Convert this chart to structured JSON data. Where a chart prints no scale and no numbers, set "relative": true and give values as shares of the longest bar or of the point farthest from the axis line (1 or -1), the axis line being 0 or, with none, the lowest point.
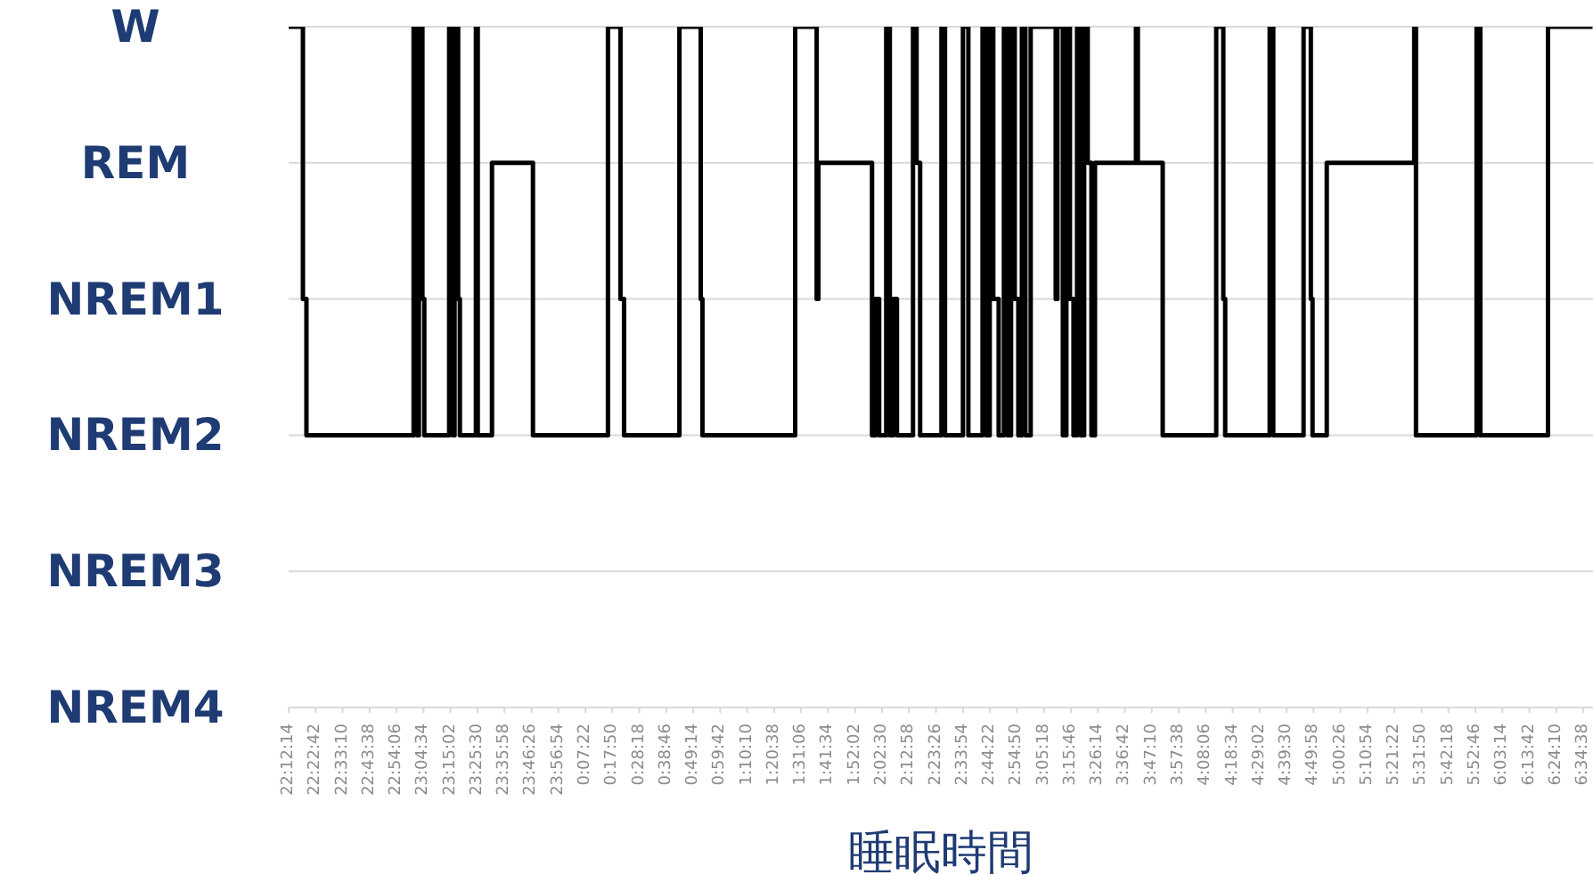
{
  "chart_data": {
    "type": "step",
    "xlabel": "睡眠時間",
    "x": [
      "2000-01-01T22:12:14",
      "2000-01-01T22:17:46",
      "2000-01-01T22:19:08",
      "2000-01-01T23:00:43",
      "2000-01-01T23:02:06",
      "2000-01-01T23:02:46",
      "2000-01-01T23:04:08",
      "2000-01-01T23:04:52",
      "2000-01-01T23:14:31",
      "2000-01-01T23:15:54",
      "2000-01-01T23:16:37",
      "2000-01-01T23:18:00",
      "2000-01-01T23:18:40",
      "2000-01-01T23:24:54",
      "2000-01-01T23:25:37",
      "2000-01-01T23:31:08",
      "2000-01-01T23:47:02",
      "2000-01-02T00:16:08",
      "2000-01-02T00:21:00",
      "2000-01-02T00:22:23",
      "2000-01-02T00:43:52",
      "2000-01-02T00:52:08",
      "2000-01-02T00:52:48",
      "2000-01-02T01:28:48",
      "2000-01-02T01:37:08",
      "2000-01-02T01:37:48",
      "2000-01-02T01:58:37",
      "2000-01-02T02:00:00",
      "2000-01-02T02:01:23",
      "2000-01-02T02:04:08",
      "2000-01-02T02:05:31",
      "2000-01-02T02:06:54",
      "2000-01-02T02:08:17",
      "2000-01-02T02:14:31",
      "2000-01-02T02:15:54",
      "2000-01-02T02:17:17",
      "2000-01-02T02:25:34",
      "2000-01-02T02:26:56",
      "2000-01-02T02:33:54",
      "2000-01-02T02:36:00",
      "2000-01-02T02:41:31",
      "2000-01-02T02:42:54",
      "2000-01-02T02:44:17",
      "2000-01-02T02:45:40",
      "2000-01-02T02:47:46",
      "2000-01-02T02:49:48",
      "2000-01-02T02:51:11",
      "2000-01-02T02:52:34",
      "2000-01-02T02:54:00",
      "2000-01-02T02:55:23",
      "2000-01-02T02:56:46",
      "2000-01-02T02:58:08",
      "2000-01-02T03:00:11",
      "2000-01-02T03:09:54",
      "2000-01-02T03:10:34",
      "2000-01-02T03:12:40",
      "2000-01-02T03:14:02",
      "2000-01-02T03:15:25",
      "2000-01-02T03:16:48",
      "2000-01-02T03:18:11",
      "2000-01-02T03:19:34",
      "2000-01-02T03:20:56",
      "2000-01-02T03:22:19",
      "2000-01-02T03:23:46",
      "2000-01-02T03:25:08",
      "2000-01-02T03:41:02",
      "2000-01-02T03:41:46",
      "2000-01-02T03:51:25",
      "2000-01-02T04:12:11",
      "2000-01-02T04:14:56",
      "2000-01-02T04:15:40",
      "2000-01-02T04:32:56",
      "2000-01-02T04:34:19",
      "2000-01-02T04:46:05",
      "2000-01-02T04:48:54",
      "2000-01-02T04:49:34",
      "2000-01-02T04:55:05",
      "2000-01-02T05:29:02",
      "2000-01-02T05:29:42",
      "2000-01-02T05:53:13",
      "2000-01-02T05:54:40",
      "2000-01-02T06:20:56",
      "2000-01-02T06:38:13"
    ],
    "y_categories": [
      "W",
      "REM",
      "NREM1",
      "NREM2",
      "NREM3",
      "NREM4"
    ],
    "relative": true,
    "series": [
      {
        "color": "#000000",
        "values": [
          1,
          0.6,
          0.4,
          1,
          0.4,
          1,
          0.6,
          0.4,
          1,
          0.4,
          1,
          0.6,
          0.4,
          1,
          0.4,
          0.8,
          0.4,
          1,
          0.6,
          0.4,
          1,
          0.6,
          0.4,
          1,
          0.6,
          0.8,
          0.4,
          0.6,
          0.4,
          1,
          0.4,
          0.6,
          0.4,
          1,
          0.8,
          0.4,
          1,
          0.4,
          1,
          0.4,
          1,
          0.4,
          1,
          0.6,
          0.4,
          1,
          0.4,
          1,
          0.6,
          0.4,
          1,
          0.4,
          1,
          0.6,
          1,
          0.4,
          1,
          0.6,
          0.4,
          1,
          0.4,
          1,
          0.8,
          0.4,
          0.8,
          1,
          0.8,
          0.4,
          1,
          0.6,
          0.4,
          1,
          0.4,
          1,
          0.6,
          0.4,
          0.8,
          1,
          0.4,
          1,
          0.4,
          1,
          1
        ]
      }
    ],
    "xlim": [
      "2000-01-01T22:12:14",
      "2000-01-02T06:38:24"
    ],
    "xticks": [
      {
        "value": "2000-01-01T22:12:14",
        "label": "22:12:14"
      },
      {
        "value": "2000-01-01T22:22:42",
        "label": "22:22:42"
      },
      {
        "value": "2000-01-01T22:33:10",
        "label": "22:33:10"
      },
      {
        "value": "2000-01-01T22:43:38",
        "label": "22:43:38"
      },
      {
        "value": "2000-01-01T22:54:06",
        "label": "22:54:06"
      },
      {
        "value": "2000-01-01T23:04:34",
        "label": "23:04:34"
      },
      {
        "value": "2000-01-01T23:15:02",
        "label": "23:15:02"
      },
      {
        "value": "2000-01-01T23:25:30",
        "label": "23:25:30"
      },
      {
        "value": "2000-01-01T23:35:58",
        "label": "23:35:58"
      },
      {
        "value": "2000-01-01T23:46:26",
        "label": "23:46:26"
      },
      {
        "value": "2000-01-01T23:56:54",
        "label": "23:56:54"
      },
      {
        "value": "2000-01-02T00:07:22",
        "label": "0:07:22"
      },
      {
        "value": "2000-01-02T00:17:50",
        "label": "0:17:50"
      },
      {
        "value": "2000-01-02T00:28:18",
        "label": "0:28:18"
      },
      {
        "value": "2000-01-02T00:38:46",
        "label": "0:38:46"
      },
      {
        "value": "2000-01-02T00:49:14",
        "label": "0:49:14"
      },
      {
        "value": "2000-01-02T00:59:42",
        "label": "0:59:42"
      },
      {
        "value": "2000-01-02T01:10:10",
        "label": "1:10:10"
      },
      {
        "value": "2000-01-02T01:20:38",
        "label": "1:20:38"
      },
      {
        "value": "2000-01-02T01:31:06",
        "label": "1:31:06"
      },
      {
        "value": "2000-01-02T01:41:34",
        "label": "1:41:34"
      },
      {
        "value": "2000-01-02T01:52:02",
        "label": "1:52:02"
      },
      {
        "value": "2000-01-02T02:02:30",
        "label": "2:02:30"
      },
      {
        "value": "2000-01-02T02:12:58",
        "label": "2:12:58"
      },
      {
        "value": "2000-01-02T02:23:26",
        "label": "2:23:26"
      },
      {
        "value": "2000-01-02T02:33:54",
        "label": "2:33:54"
      },
      {
        "value": "2000-01-02T02:44:22",
        "label": "2:44:22"
      },
      {
        "value": "2000-01-02T02:54:50",
        "label": "2:54:50"
      },
      {
        "value": "2000-01-02T03:05:18",
        "label": "3:05:18"
      },
      {
        "value": "2000-01-02T03:15:46",
        "label": "3:15:46"
      },
      {
        "value": "2000-01-02T03:26:14",
        "label": "3:26:14"
      },
      {
        "value": "2000-01-02T03:36:42",
        "label": "3:36:42"
      },
      {
        "value": "2000-01-02T03:47:10",
        "label": "3:47:10"
      },
      {
        "value": "2000-01-02T03:57:38",
        "label": "3:57:38"
      },
      {
        "value": "2000-01-02T04:08:06",
        "label": "4:08:06"
      },
      {
        "value": "2000-01-02T04:18:34",
        "label": "4:18:34"
      },
      {
        "value": "2000-01-02T04:29:02",
        "label": "4:29:02"
      },
      {
        "value": "2000-01-02T04:39:30",
        "label": "4:39:30"
      },
      {
        "value": "2000-01-02T04:49:58",
        "label": "4:49:58"
      },
      {
        "value": "2000-01-02T05:00:26",
        "label": "5:00:26"
      },
      {
        "value": "2000-01-02T05:10:54",
        "label": "5:10:54"
      },
      {
        "value": "2000-01-02T05:21:22",
        "label": "5:21:22"
      },
      {
        "value": "2000-01-02T05:31:50",
        "label": "5:31:50"
      },
      {
        "value": "2000-01-02T05:42:18",
        "label": "5:42:18"
      },
      {
        "value": "2000-01-02T05:52:46",
        "label": "5:52:46"
      },
      {
        "value": "2000-01-02T06:03:14",
        "label": "6:03:14"
      },
      {
        "value": "2000-01-02T06:13:42",
        "label": "6:13:42"
      },
      {
        "value": "2000-01-02T06:24:10",
        "label": "6:24:10"
      },
      {
        "value": "2000-01-02T06:34:38",
        "label": "6:34:38"
      }
    ],
    "grid": "y",
    "legend": false,
    "marker": "none",
    "line_style": "solid"
  }
}
